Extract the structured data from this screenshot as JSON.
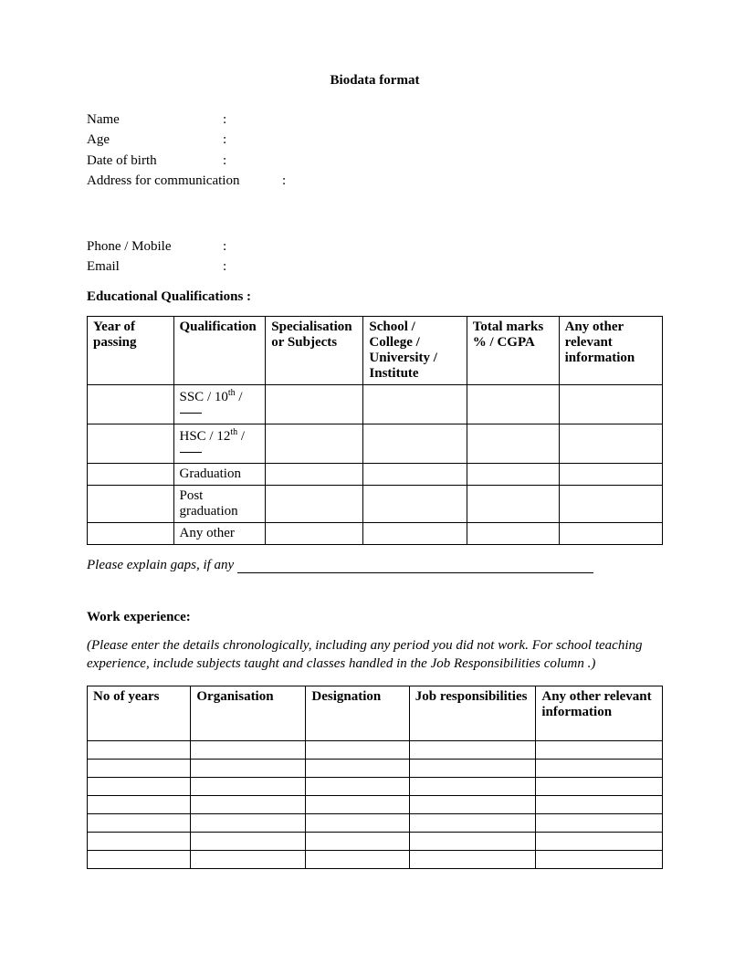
{
  "title": "Biodata format",
  "fields": {
    "name": "Name",
    "age": "Age",
    "dob": "Date of birth",
    "address": "Address for communication",
    "phone": "Phone / Mobile",
    "email": "Email"
  },
  "colon": ":",
  "edu_heading": "Educational Qualifications  :",
  "edu_table": {
    "headers": {
      "c1": "Year of passing",
      "c2": "Qualification",
      "c3": "Specialisation or Subjects",
      "c4": "School / College / University / Institute",
      "c5": "Total marks % / CGPA",
      "c6": "Any other relevant information"
    },
    "rows": {
      "r1": "SSC / 10",
      "r1_sup": "th",
      "r1_suffix": " /",
      "r2": "HSC / 12",
      "r2_sup": "th",
      "r2_suffix": " /",
      "r3": "Graduation",
      "r4": "Post graduation",
      "r5": "Any other"
    }
  },
  "gaps_label": "Please explain gaps, if any",
  "work_heading": "Work experience:",
  "work_note": "(Please enter the details chronologically, including any period you did not work. For school teaching experience, include subjects taught and classes handled in the Job Responsibilities column .)",
  "work_table": {
    "headers": {
      "c1": "No of years",
      "c2": "Organisation",
      "c3": "Designation",
      "c4": "Job responsibilities",
      "c5": "Any other relevant information"
    }
  }
}
